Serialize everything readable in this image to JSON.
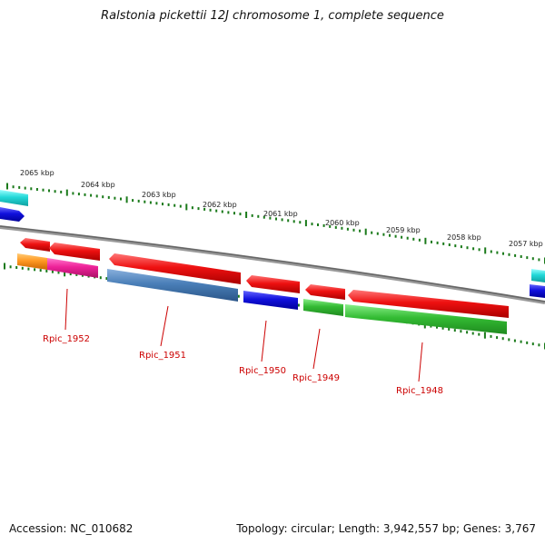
{
  "title": "Ralstonia pickettii 12J chromosome 1, complete sequence",
  "accession": "Accession: NC_010682",
  "summary": "Topology: circular; Length: 3,942,557 bp; Genes: 3,767",
  "colors": {
    "backbone": "#808080",
    "tick": "#1a7a1a",
    "label": "#cc0000",
    "red": "#ee1111",
    "blue": "#1111dd",
    "cyan": "#22d8d8",
    "steel": "#4a7fb8",
    "green": "#33bb33",
    "orange": "#ff9922",
    "magenta": "#ee2299"
  },
  "kbp_labels": [
    "2065 kbp",
    "2064 kbp",
    "2063 kbp",
    "2062 kbp",
    "2061 kbp",
    "2060 kbp",
    "2059 kbp",
    "2058 kbp",
    "2057 kbp"
  ],
  "gene_labels": [
    "Rpic_1952",
    "Rpic_1951",
    "Rpic_1950",
    "Rpic_1949",
    "Rpic_1948"
  ]
}
